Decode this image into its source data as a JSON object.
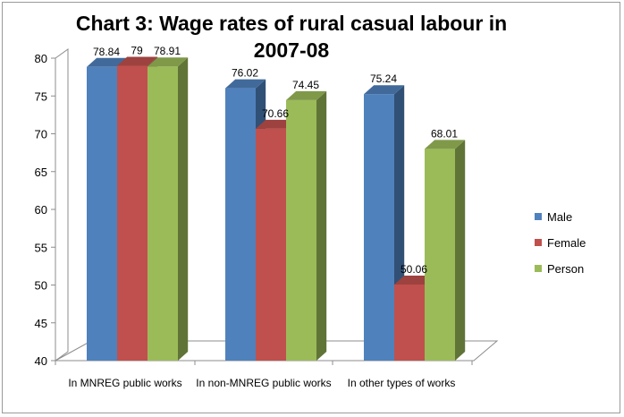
{
  "chart_data": {
    "type": "bar",
    "title": "Chart 3: Wage rates of rural casual labour in 2007-08",
    "title_lines": [
      "Chart 3: Wage rates of rural casual labour in",
      "2007-08"
    ],
    "categories": [
      "In MNREG public works",
      "In non-MNREG public works",
      "In other types of works"
    ],
    "series": [
      {
        "name": "Male",
        "color": "#4f81bd",
        "values": [
          78.84,
          76.02,
          75.24
        ],
        "labels": [
          "78.84",
          "76.02",
          "75.24"
        ]
      },
      {
        "name": "Female",
        "color": "#c0504d",
        "values": [
          79,
          70.66,
          50.06
        ],
        "labels": [
          "79",
          "70.66",
          "50.06"
        ]
      },
      {
        "name": "Person",
        "color": "#9bbb59",
        "values": [
          78.91,
          74.45,
          68.01
        ],
        "labels": [
          "78.91",
          "74.45",
          "68.01"
        ]
      }
    ],
    "ylim": [
      40,
      80
    ],
    "yticks": [
      40,
      45,
      50,
      55,
      60,
      65,
      70,
      75,
      80
    ],
    "xlabel": "",
    "ylabel": "",
    "legend_position": "right",
    "grid": false,
    "style": "3d-clustered-column"
  }
}
